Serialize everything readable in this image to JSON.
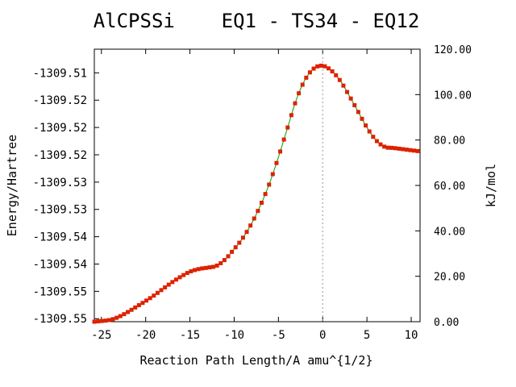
{
  "chart_data": {
    "type": "line",
    "title": "AlCPSSi    EQ1 - TS34 - EQ12",
    "xlabel": "Reaction Path Length/A amu^{1/2}",
    "ylabel": "Energy/Hartree",
    "y2label": "kJ/mol",
    "xlim": [
      -25.8,
      11
    ],
    "ylim": [
      -1309.5515,
      -1309.5066
    ],
    "y2lim": [
      0,
      120
    ],
    "x_ticks": [
      -25,
      -20,
      -15,
      -10,
      -5,
      0,
      5,
      10
    ],
    "x_tick_labels": [
      "-25",
      "-20",
      "-15",
      "-10",
      "-5",
      "0",
      "5",
      "10"
    ],
    "y_ticks": [
      -1309.551,
      -1309.5465,
      -1309.542,
      -1309.5375,
      -1309.533,
      -1309.5285,
      -1309.524,
      -1309.5195,
      -1309.515,
      -1309.5105
    ],
    "y_tick_labels": [
      "-1309.55",
      "-1309.55",
      "-1309.54",
      "-1309.54",
      "-1309.53",
      "-1309.53",
      "-1309.52",
      "-1309.52",
      "-1309.52",
      "-1309.51"
    ],
    "y2_ticks": [
      0,
      20,
      40,
      60,
      80,
      100,
      120
    ],
    "y2_tick_labels": [
      "0.00",
      "20.00",
      "40.00",
      "60.00",
      "80.00",
      "100.00",
      "120.00"
    ],
    "ts_marker_x": 0,
    "grid": false,
    "colors": {
      "line": "#00a000",
      "marker": "#dd2200",
      "ts_line": "#999999"
    },
    "curve": {
      "x": [
        -25.8,
        -25,
        -24,
        -23,
        -22,
        -21,
        -20,
        -19,
        -18,
        -17,
        -16,
        -15,
        -14,
        -13,
        -12,
        -11,
        -10,
        -9,
        -8,
        -7,
        -6,
        -5,
        -4,
        -3,
        -2,
        -1,
        0,
        1,
        2,
        3,
        4,
        5,
        6,
        7,
        8,
        9,
        10,
        11
      ],
      "y": [
        0.0,
        0.3,
        0.8,
        2.2,
        4.3,
        6.7,
        9.1,
        11.7,
        14.6,
        17.4,
        19.9,
        22.0,
        23.2,
        23.8,
        24.6,
        27.5,
        32.0,
        37.0,
        43.5,
        51.5,
        61.0,
        72.5,
        85.0,
        97.5,
        106.5,
        111.5,
        112.7,
        110.5,
        106.0,
        99.5,
        92.5,
        85.5,
        80.0,
        77.0,
        76.5,
        76.0,
        75.5,
        75.0
      ]
    },
    "marker_step": 0.42
  }
}
